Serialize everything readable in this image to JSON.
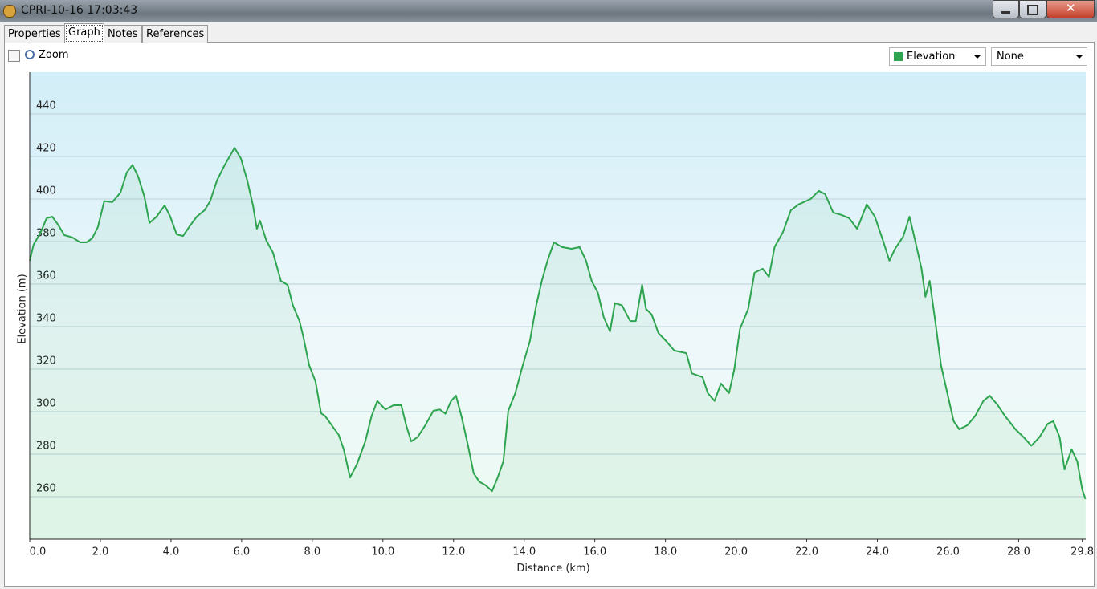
{
  "window": {
    "title": "CPRI-10-16 17:03:43"
  },
  "tabs": [
    "Properties",
    "Graph",
    "Notes",
    "References"
  ],
  "toolbar": {
    "zoom_label": "Zoom",
    "second_select": "None"
  },
  "chart_data": {
    "type": "area",
    "x_label": "Distance (km)",
    "y_label": "Elevation (m)",
    "x": [
      0.0,
      0.11,
      0.3,
      0.48,
      0.64,
      0.8,
      0.98,
      1.2,
      1.43,
      1.61,
      1.77,
      1.93,
      2.11,
      2.34,
      2.57,
      2.75,
      2.91,
      3.07,
      3.25,
      3.39,
      3.59,
      3.82,
      3.98,
      4.16,
      4.34,
      4.52,
      4.73,
      4.95,
      5.11,
      5.3,
      5.52,
      5.8,
      5.98,
      6.16,
      6.32,
      6.43,
      6.52,
      6.7,
      6.89,
      7.11,
      7.3,
      7.45,
      7.64,
      7.75,
      7.91,
      8.09,
      8.25,
      8.36,
      8.52,
      8.75,
      8.89,
      9.07,
      9.27,
      9.5,
      9.68,
      9.84,
      10.07,
      10.3,
      10.52,
      10.66,
      10.8,
      10.98,
      11.2,
      11.43,
      11.61,
      11.77,
      11.93,
      12.07,
      12.23,
      12.41,
      12.57,
      12.73,
      12.91,
      13.09,
      13.25,
      13.41,
      13.55,
      13.75,
      13.93,
      14.16,
      14.34,
      14.5,
      14.66,
      14.84,
      15.07,
      15.34,
      15.57,
      15.75,
      15.91,
      16.09,
      16.25,
      16.43,
      16.57,
      16.77,
      17.0,
      17.16,
      17.34,
      17.45,
      17.61,
      17.8,
      18.02,
      18.25,
      18.59,
      18.75,
      19.05,
      19.2,
      19.39,
      19.57,
      19.8,
      19.95,
      20.11,
      20.34,
      20.52,
      20.75,
      20.93,
      21.09,
      21.32,
      21.55,
      21.77,
      22.11,
      22.34,
      22.52,
      22.75,
      22.98,
      23.2,
      23.43,
      23.7,
      23.93,
      24.16,
      24.34,
      24.5,
      24.73,
      24.91,
      25.07,
      25.25,
      25.36,
      25.48,
      25.64,
      25.8,
      25.98,
      26.16,
      26.32,
      26.55,
      26.77,
      27.0,
      27.18,
      27.41,
      27.61,
      27.91,
      28.14,
      28.36,
      28.59,
      28.82,
      28.98,
      29.16,
      29.3,
      29.5,
      29.66,
      29.8,
      29.89
    ],
    "series": [
      {
        "name": "Elevation",
        "color": "#2ea44f",
        "values": [
          371,
          378.5,
          384,
          391,
          391.7,
          388,
          383,
          382,
          379.6,
          379.6,
          381.5,
          386.8,
          399,
          398.5,
          403,
          412.5,
          416,
          410.6,
          401,
          388.7,
          391.7,
          397,
          391.7,
          383.4,
          382.6,
          387,
          391.7,
          394.7,
          399,
          408.7,
          416,
          424,
          419,
          408.7,
          397,
          386,
          389.8,
          380.4,
          374.7,
          361.5,
          359.6,
          350,
          342.6,
          335,
          321.9,
          314.3,
          299.2,
          298,
          294.3,
          289,
          282.3,
          269,
          275.5,
          286,
          298,
          305,
          301,
          303,
          303,
          293.6,
          286,
          288,
          293.6,
          300.4,
          301,
          299,
          305,
          307.5,
          297.4,
          284,
          271,
          267,
          265.3,
          262.6,
          269,
          276.6,
          300.4,
          308.7,
          320,
          333.2,
          350,
          361.5,
          370.9,
          379.6,
          377.4,
          376.6,
          377.4,
          371,
          361.5,
          355.8,
          344.5,
          337.7,
          351,
          350,
          342.6,
          342.6,
          359.6,
          348.3,
          345.7,
          337,
          333.2,
          328.7,
          327.5,
          318,
          316.2,
          308.7,
          305,
          313.2,
          308.7,
          320,
          338.9,
          348.3,
          365.3,
          367.2,
          363.4,
          377.4,
          384.2,
          394.7,
          397.4,
          400,
          403.8,
          402.3,
          393.6,
          392.5,
          391,
          386,
          397.4,
          391.7,
          380.4,
          371,
          376.6,
          382.3,
          391.7,
          380.4,
          367.2,
          354,
          361.5,
          342.6,
          321.9,
          308.7,
          295.5,
          291.7,
          293.6,
          298,
          305,
          307.5,
          303,
          298,
          291.7,
          288,
          284,
          288,
          294.3,
          295.5,
          288,
          272.8,
          282.3,
          276.6,
          263.4,
          258.9
        ]
      }
    ],
    "xlim": [
      0,
      29.9
    ],
    "ylim": [
      240,
      459.6
    ],
    "xticks": [
      {
        "value": 0,
        "label": "0.0"
      },
      {
        "value": 2,
        "label": "2.0"
      },
      {
        "value": 4,
        "label": "4.0"
      },
      {
        "value": 6,
        "label": "6.0"
      },
      {
        "value": 8,
        "label": "8.0"
      },
      {
        "value": 10,
        "label": "10.0"
      },
      {
        "value": 12,
        "label": "12.0"
      },
      {
        "value": 14,
        "label": "14.0"
      },
      {
        "value": 16,
        "label": "16.0"
      },
      {
        "value": 18,
        "label": "18.0"
      },
      {
        "value": 20,
        "label": "20.0"
      },
      {
        "value": 22,
        "label": "22.0"
      },
      {
        "value": 24,
        "label": "24.0"
      },
      {
        "value": 26,
        "label": "26.0"
      },
      {
        "value": 28,
        "label": "28.0"
      },
      29.8
    ],
    "yticks": [
      260,
      280,
      300,
      320,
      340,
      360,
      380,
      400,
      420,
      440
    ],
    "grid": true
  }
}
